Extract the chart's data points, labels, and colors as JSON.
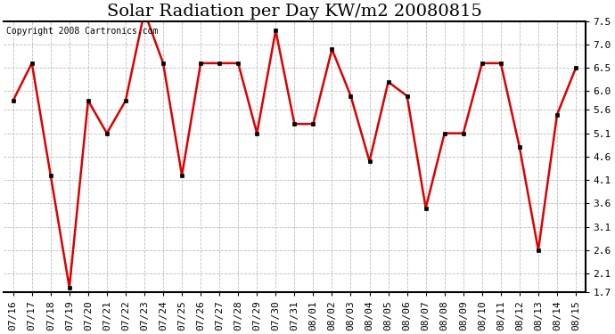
{
  "title": "Solar Radiation per Day KW/m2 20080815",
  "copyright": "Copyright 2008 Cartronics.com",
  "x_labels": [
    "07/16",
    "07/17",
    "07/18",
    "07/19",
    "07/20",
    "07/21",
    "07/22",
    "07/23",
    "07/24",
    "07/25",
    "07/26",
    "07/27",
    "07/28",
    "07/29",
    "07/30",
    "07/31",
    "08/01",
    "08/02",
    "08/03",
    "08/04",
    "08/05",
    "08/06",
    "08/07",
    "08/08",
    "08/09",
    "08/10",
    "08/11",
    "08/12",
    "08/13",
    "08/14",
    "08/15"
  ],
  "y_values": [
    5.8,
    6.6,
    4.2,
    1.8,
    5.8,
    5.1,
    5.8,
    7.7,
    6.6,
    4.2,
    6.6,
    6.6,
    6.6,
    5.1,
    7.3,
    5.3,
    5.3,
    6.9,
    5.9,
    4.5,
    6.2,
    5.9,
    3.5,
    5.1,
    5.1,
    6.6,
    6.6,
    4.8,
    2.6,
    5.5,
    6.5
  ],
  "line_color": "#dd0000",
  "marker_face_color": "#000000",
  "marker_edge_color": "#000000",
  "bg_color": "#ffffff",
  "grid_color": "#bbbbbb",
  "ylim_min": 1.7,
  "ylim_max": 7.5,
  "yticks": [
    1.7,
    2.1,
    2.6,
    3.1,
    3.6,
    4.1,
    4.6,
    5.1,
    5.6,
    6.0,
    6.5,
    7.0,
    7.5
  ],
  "title_fontsize": 14,
  "tick_fontsize": 8,
  "copyright_fontsize": 7
}
